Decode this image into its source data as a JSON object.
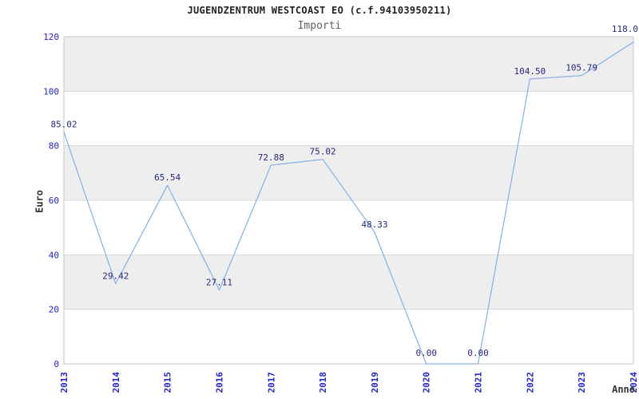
{
  "header": {
    "title": "JUGENDZENTRUM WESTCOAST EO (c.f.94103950211)",
    "subtitle": "Importi"
  },
  "chart_data": {
    "type": "line",
    "title": "JUGENDZENTRUM WESTCOAST EO (c.f.94103950211)",
    "subtitle": "Importi",
    "xlabel": "Anno",
    "ylabel": "Euro",
    "categories": [
      "2013",
      "2014",
      "2015",
      "2016",
      "2017",
      "2018",
      "2019",
      "2020",
      "2021",
      "2022",
      "2023",
      "2024"
    ],
    "values": [
      85.02,
      29.42,
      65.54,
      27.11,
      72.88,
      75.02,
      48.33,
      0.0,
      0.0,
      104.5,
      105.79,
      118.0
    ],
    "point_labels": [
      "85.02",
      "29.42",
      "65.54",
      "27.11",
      "72.88",
      "75.02",
      "48.33",
      "0.00",
      "0.00",
      "104.50",
      "105.79",
      "118.0"
    ],
    "ylim": [
      0,
      120
    ],
    "ytick_step": 20,
    "ytick_labels": [
      "0",
      "20",
      "40",
      "60",
      "80",
      "100",
      "120"
    ],
    "grid": "horizontal",
    "alternating_bands": true,
    "legend": "none",
    "colors": {
      "line": "#89b2e3",
      "tick_label": "#2424cc",
      "point_label": "#28287c",
      "band": "#eeeeee",
      "grid": "#d9d9d9",
      "border": "#cacaca",
      "title": "#222222",
      "subtitle": "#606060",
      "axis_title": "#333333",
      "background": "#ffffff"
    }
  }
}
